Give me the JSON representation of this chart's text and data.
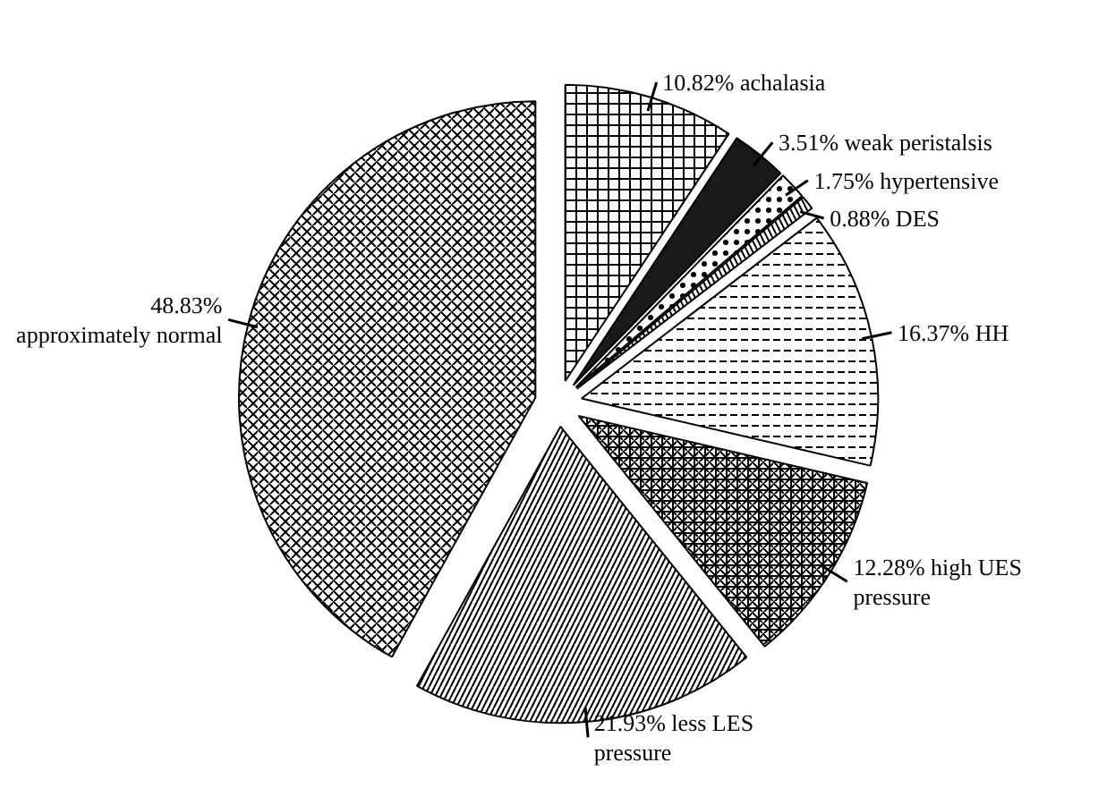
{
  "chart_data": {
    "type": "pie",
    "categories": [
      "achalasia",
      "weak peristalsis",
      "hypertensive",
      "DES",
      "HH",
      "high UES pressure",
      "less LES pressure",
      "approximately normal"
    ],
    "values": [
      10.82,
      3.51,
      1.75,
      0.88,
      16.37,
      12.28,
      21.93,
      48.83
    ],
    "value_labels": [
      "10.82%",
      "3.51%",
      "1.75%",
      "0.88%",
      "16.37%",
      "12.28%",
      "21.93%",
      "48.83%"
    ],
    "colors": [
      "#ffffff",
      "#1a1a1a",
      "#ffffff",
      "#ffffff",
      "#ffffff",
      "#ffffff",
      "#ffffff",
      "#ffffff"
    ]
  }
}
